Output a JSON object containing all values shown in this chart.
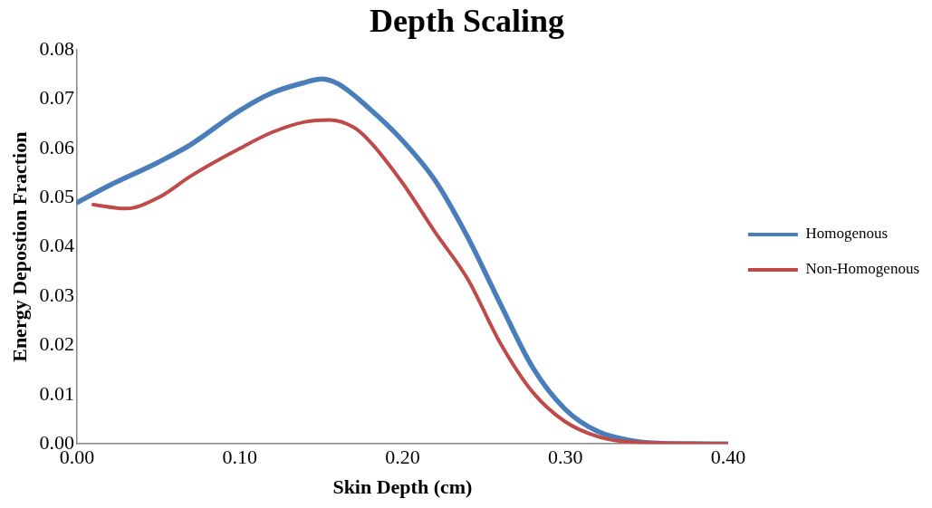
{
  "chart_data": {
    "type": "line",
    "title": "Depth Scaling",
    "xlabel": "Skin Depth (cm)",
    "ylabel": "Energy Depostion Fraction",
    "xlim": [
      0,
      0.4
    ],
    "xticks": [
      {
        "value": 0,
        "label": "0.00"
      },
      {
        "value": 0.1,
        "label": "0.10"
      },
      {
        "value": 0.2,
        "label": "0.20"
      },
      {
        "value": 0.3,
        "label": "0.30"
      },
      {
        "value": 0.4,
        "label": "0.40"
      }
    ],
    "ylim": [
      0,
      0.08
    ],
    "yticks": [
      {
        "value": 0,
        "label": "0.00"
      },
      {
        "value": 0.01,
        "label": "0.01"
      },
      {
        "value": 0.02,
        "label": "0.02"
      },
      {
        "value": 0.03,
        "label": "0.03"
      },
      {
        "value": 0.04,
        "label": "0.04"
      },
      {
        "value": 0.05,
        "label": "0.05"
      },
      {
        "value": 0.06,
        "label": "0.06"
      },
      {
        "value": 0.07,
        "label": "0.07"
      },
      {
        "value": 0.08,
        "label": "0.08"
      }
    ],
    "grid": false,
    "legend": "right",
    "marker": "none",
    "line_style": "solid",
    "series": [
      {
        "name": "Homogenous",
        "color": "#4a7ebb",
        "x": [
          0,
          0.02,
          0.05,
          0.07,
          0.1,
          0.12,
          0.14,
          0.15,
          0.16,
          0.18,
          0.2,
          0.22,
          0.24,
          0.26,
          0.28,
          0.3,
          0.32,
          0.34,
          0.36,
          0.4
        ],
        "values": [
          0.049,
          0.0525,
          0.0572,
          0.0608,
          0.0677,
          0.0713,
          0.0734,
          0.0741,
          0.0732,
          0.068,
          0.0616,
          0.0535,
          0.042,
          0.0285,
          0.0155,
          0.007,
          0.0025,
          0.0007,
          0.0001,
          0
        ]
      },
      {
        "name": "Non-Homogenous",
        "color": "#be4b48",
        "x": [
          0.01,
          0.03,
          0.05,
          0.07,
          0.1,
          0.12,
          0.14,
          0.155,
          0.17,
          0.18,
          0.2,
          0.22,
          0.24,
          0.26,
          0.28,
          0.3,
          0.32,
          0.34,
          0.4
        ],
        "values": [
          0.0486,
          0.0478,
          0.05,
          0.0544,
          0.06,
          0.0633,
          0.0654,
          0.0658,
          0.0643,
          0.0614,
          0.053,
          0.043,
          0.0335,
          0.0205,
          0.0105,
          0.0045,
          0.0015,
          0.0004,
          0
        ]
      }
    ]
  }
}
